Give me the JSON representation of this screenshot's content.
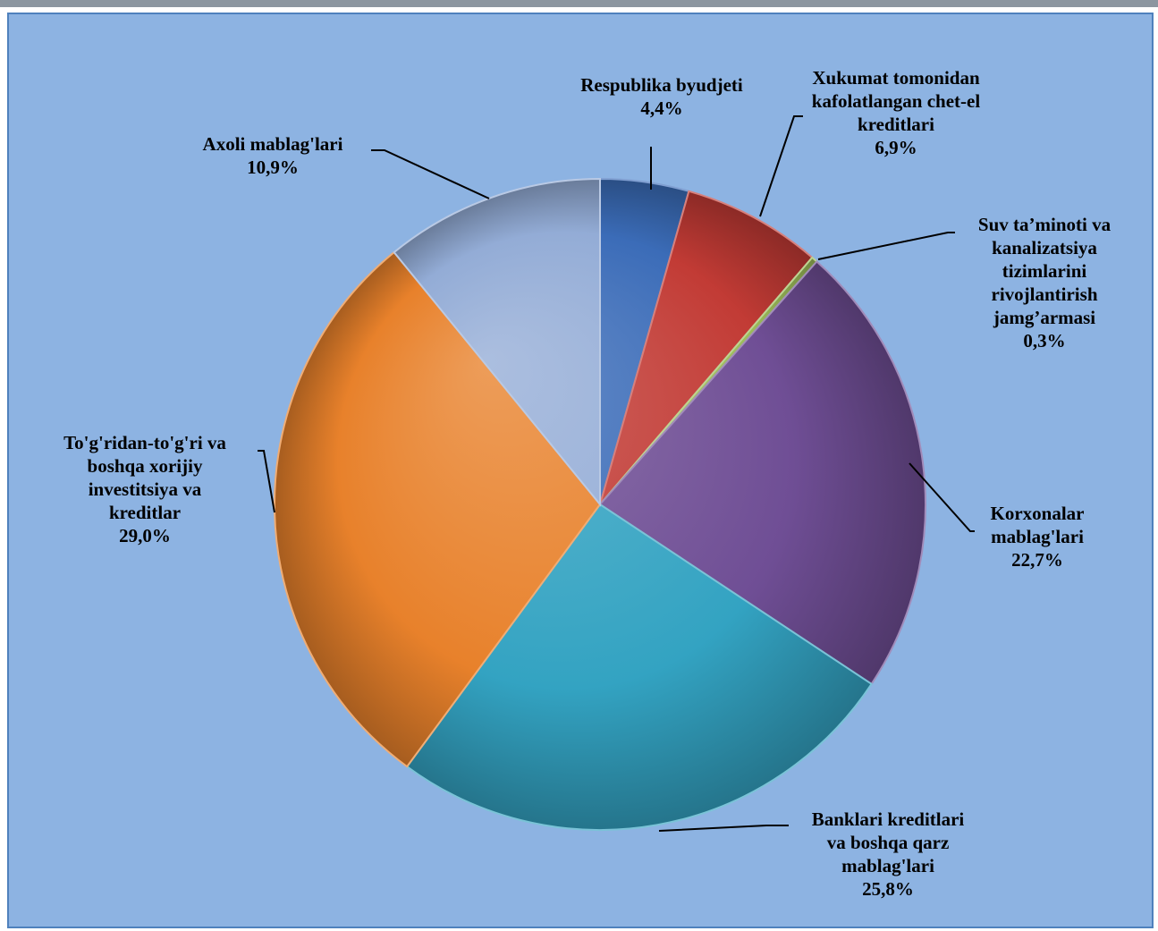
{
  "chart_data": {
    "type": "pie",
    "style": "3d-bevel",
    "start_angle_deg": 0,
    "direction": "clockwise",
    "legend": "none",
    "slices": [
      {
        "label": "Respublika byudjeti",
        "value": 4.4,
        "value_label": "4,4%",
        "color": "#3b6cb8"
      },
      {
        "label": "Xukumat tomonidan kafolatlangan chet-el kreditlari",
        "value": 6.9,
        "value_label": "6,9%",
        "color": "#c23b35"
      },
      {
        "label": "Suv ta’minoti va kanalizatsiya tizimlarini rivojlantirish jamg’armasi",
        "value": 0.3,
        "value_label": "0,3%",
        "color": "#9bbb59"
      },
      {
        "label": "Korxonalar mablag'lari",
        "value": 22.7,
        "value_label": "22,7%",
        "color": "#6f4e95"
      },
      {
        "label": "Banklari kreditlari va boshqa qarz mablag'lari",
        "value": 25.8,
        "value_label": "25,8%",
        "color": "#33a3c2"
      },
      {
        "label": "To'g'ridan-to'g'ri va boshqa xorijiy investitsiya va kreditlar",
        "value": 29.0,
        "value_label": "29,0%",
        "color": "#e8812b"
      },
      {
        "label": "Axoli mablag'lari",
        "value": 10.9,
        "value_label": "10,9%",
        "color": "#93acd6"
      }
    ]
  },
  "labels": [
    {
      "lines": [
        "Respublika byudjeti",
        "4,4%"
      ]
    },
    {
      "lines": [
        "Xukumat tomonidan",
        "kafolatlangan chet-el",
        "kreditlari",
        "6,9%"
      ]
    },
    {
      "lines": [
        "Suv ta’minoti va",
        "kanalizatsiya",
        "tizimlarini",
        "rivojlantirish",
        "jamg’armasi",
        "0,3%"
      ]
    },
    {
      "lines": [
        "Korxonalar",
        "mablag'lari",
        "22,7%"
      ]
    },
    {
      "lines": [
        "Banklari kreditlari",
        "va boshqa qarz",
        "mablag'lari",
        "25,8%"
      ]
    },
    {
      "lines": [
        "To'g'ridan-to'g'ri va",
        "boshqa xorijiy",
        "investitsiya va",
        "kreditlar",
        "29,0%"
      ]
    },
    {
      "lines": [
        "Axoli mablag'lari",
        "10,9%"
      ]
    }
  ]
}
